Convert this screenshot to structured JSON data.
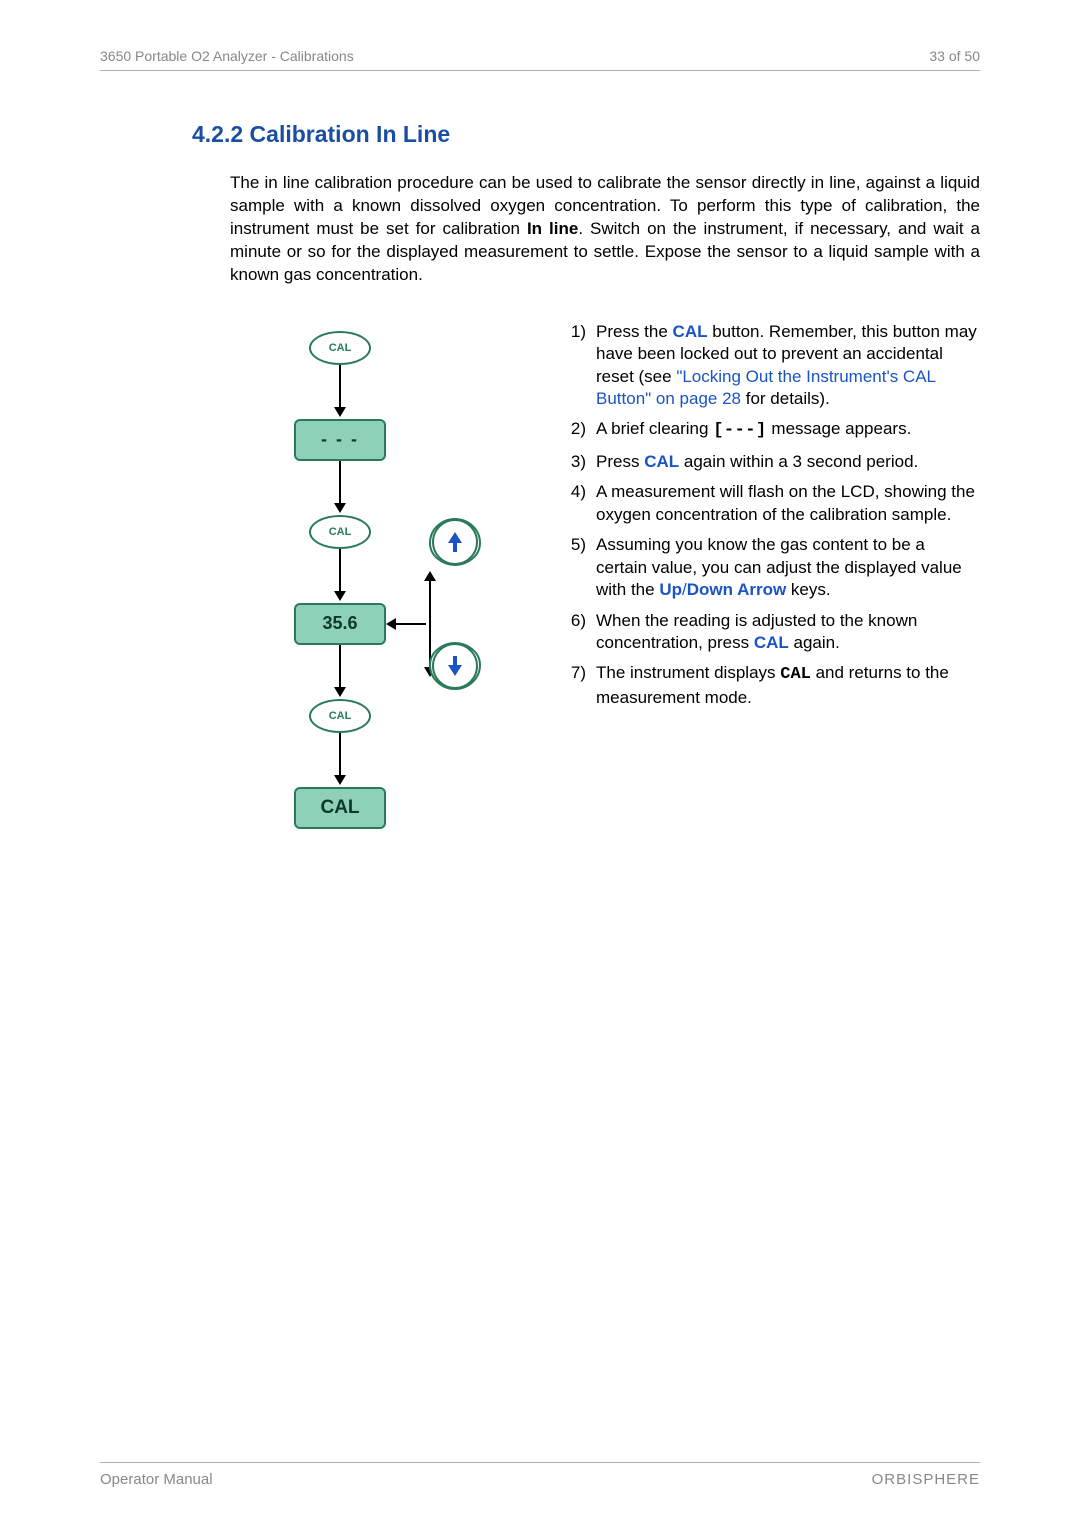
{
  "header": {
    "left": "3650 Portable O2 Analyzer - Calibrations",
    "right": "33 of 50"
  },
  "section": {
    "title": "4.2.2 Calibration In Line",
    "intro_pre": "The in line calibration procedure can be used to calibrate the sensor directly in line, against a liquid sample with a known dissolved oxygen concentration. To perform this type of calibration, the instrument must be set for calibration ",
    "intro_bold": "In line",
    "intro_post": ". Switch on the instrument, if necessary, and wait a minute or so for the displayed measurement to settle. Expose the sensor to a liquid sample with a known gas concentration."
  },
  "diagram": {
    "cal_label": "CAL",
    "clearing": "- - -",
    "reading": "35.6",
    "final": "CAL",
    "colors": {
      "stroke": "#2a7a5a",
      "fill_display": "#8fd0b8",
      "arrow": "#000000"
    }
  },
  "steps": [
    {
      "num": "1)",
      "parts": [
        {
          "t": "Press the "
        },
        {
          "t": "CAL",
          "cls": "link bold"
        },
        {
          "t": " button. Remember, this button may have been locked out to prevent an accidental reset (see "
        },
        {
          "t": "\"Locking Out the Instrument's CAL Button\" on page 28",
          "cls": "link"
        },
        {
          "t": " for details)."
        }
      ]
    },
    {
      "num": "2)",
      "parts": [
        {
          "t": "A brief clearing  "
        },
        {
          "t": "[---]",
          "cls": "mono"
        },
        {
          "t": " message appears."
        }
      ]
    },
    {
      "num": "3)",
      "parts": [
        {
          "t": "Press "
        },
        {
          "t": "CAL",
          "cls": "link bold"
        },
        {
          "t": " again within a 3 second period."
        }
      ]
    },
    {
      "num": "4)",
      "parts": [
        {
          "t": "A measurement will flash on the LCD, showing the oxygen concentration of the calibration sample."
        }
      ]
    },
    {
      "num": "5)",
      "parts": [
        {
          "t": "Assuming you know the gas content to be a certain value, you can adjust the displayed value with the "
        },
        {
          "t": "Up",
          "cls": "link bold"
        },
        {
          "t": "/",
          "cls": "link"
        },
        {
          "t": "Down Arrow",
          "cls": "link bold"
        },
        {
          "t": " keys."
        }
      ]
    },
    {
      "num": "6)",
      "parts": [
        {
          "t": "When the reading is adjusted to the known concentration, press "
        },
        {
          "t": "CAL",
          "cls": "link bold"
        },
        {
          "t": " again."
        }
      ]
    },
    {
      "num": "7)",
      "parts": [
        {
          "t": "The instrument displays "
        },
        {
          "t": "CAL",
          "cls": "mono-cal"
        },
        {
          "t": " and returns to the measurement mode."
        }
      ]
    }
  ],
  "footer": {
    "left": "Operator Manual",
    "right": "ORBISPHERE"
  }
}
